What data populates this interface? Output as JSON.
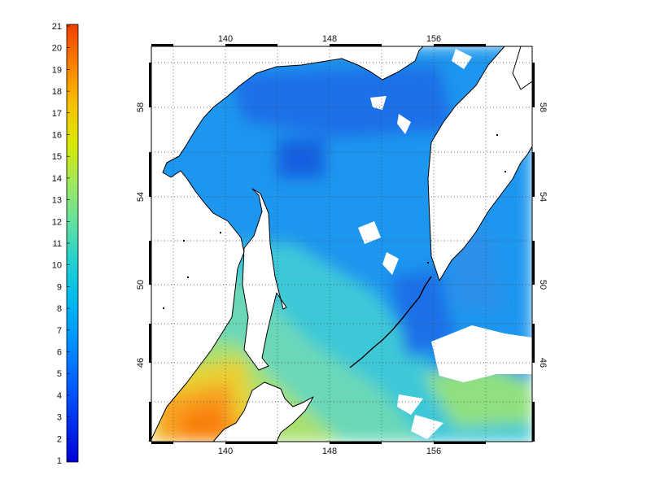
{
  "colorbar": {
    "labels": [
      "1",
      "2",
      "3",
      "4",
      "5",
      "6",
      "7",
      "8",
      "9",
      "10",
      "11",
      "12",
      "13",
      "14",
      "15",
      "16",
      "17",
      "18",
      "19",
      "20",
      "21"
    ],
    "colors": [
      "#0000d8",
      "#0030f0",
      "#0060ff",
      "#0090ff",
      "#00b8f0",
      "#20d0d0",
      "#60e0a0",
      "#a0e860",
      "#d8e800",
      "#f8c000",
      "#f88000",
      "#f04000"
    ]
  },
  "map": {
    "lon_labels": [
      "140",
      "148",
      "156"
    ],
    "lat_labels": [
      "58",
      "54",
      "50",
      "46"
    ]
  }
}
